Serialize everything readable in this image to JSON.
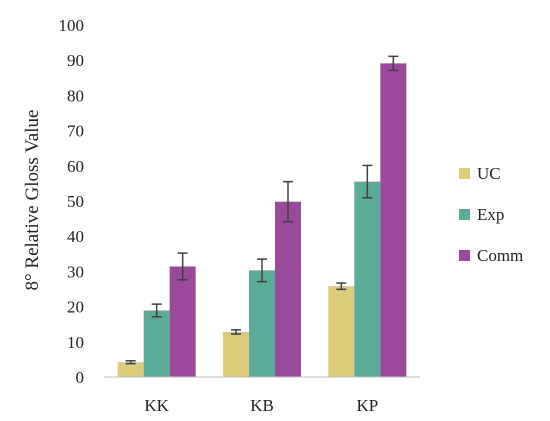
{
  "chart_data": {
    "type": "bar",
    "title": "",
    "xlabel": "",
    "ylabel": "8° Relative Gloss Value",
    "ylim": [
      0,
      100
    ],
    "yticks": [
      0,
      10,
      20,
      30,
      40,
      50,
      60,
      70,
      80,
      90,
      100
    ],
    "categories": [
      "KK",
      "KB",
      "KP"
    ],
    "series": [
      {
        "name": "UC",
        "color": "#dccb78",
        "values": [
          4.2,
          12.8,
          25.8
        ],
        "error": [
          0.4,
          0.6,
          0.9
        ]
      },
      {
        "name": "Exp",
        "color": "#5aab98",
        "values": [
          18.9,
          30.3,
          55.5
        ],
        "error": [
          1.8,
          3.2,
          4.6
        ]
      },
      {
        "name": "Comm",
        "color": "#9b4a9b",
        "values": [
          31.4,
          49.8,
          89.1
        ],
        "error": [
          3.8,
          5.7,
          2.0
        ]
      }
    ],
    "grid": false,
    "error_bars": true,
    "legend": "right"
  }
}
